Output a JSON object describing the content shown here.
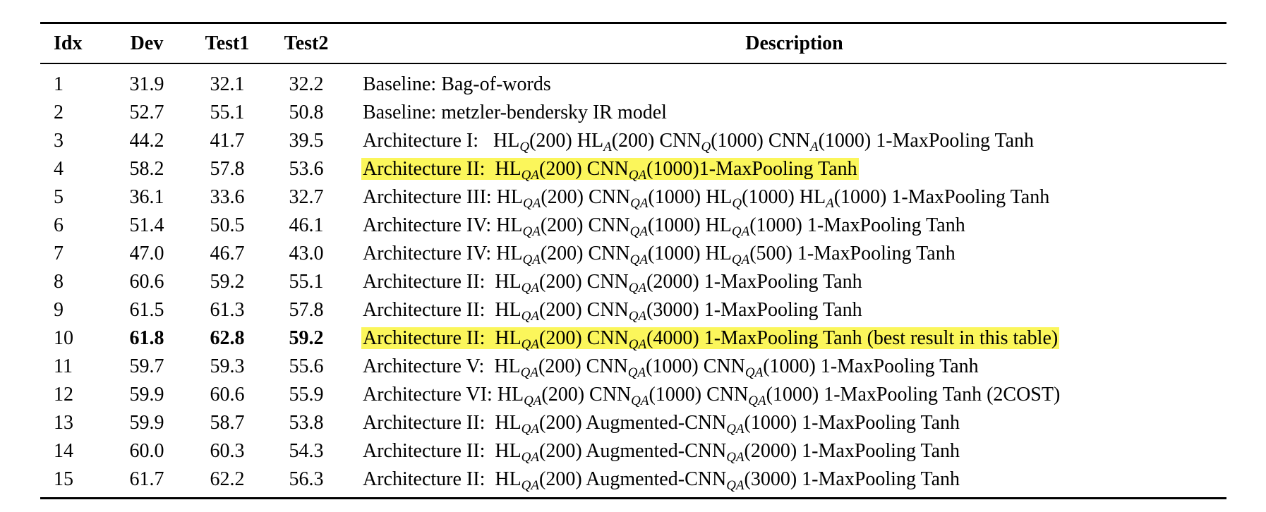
{
  "table": {
    "headers": {
      "idx": "Idx",
      "dev": "Dev",
      "test1": "Test1",
      "test2": "Test2",
      "description": "Description"
    },
    "highlight_color": "#fbf65b",
    "rows": [
      {
        "idx": "1",
        "dev": "31.9",
        "test1": "32.1",
        "test2": "32.2",
        "bold": false,
        "highlight": false,
        "desc": [
          {
            "t": "Baseline: Bag-of-words"
          }
        ]
      },
      {
        "idx": "2",
        "dev": "52.7",
        "test1": "55.1",
        "test2": "50.8",
        "bold": false,
        "highlight": false,
        "desc": [
          {
            "t": "Baseline: metzler-bendersky IR model"
          }
        ]
      },
      {
        "idx": "3",
        "dev": "44.2",
        "test1": "41.7",
        "test2": "39.5",
        "bold": false,
        "highlight": false,
        "desc": [
          {
            "t": "Architecture I:   HL"
          },
          {
            "s": "Q"
          },
          {
            "t": "(200) HL"
          },
          {
            "s": "A"
          },
          {
            "t": "(200) CNN"
          },
          {
            "s": "Q"
          },
          {
            "t": "(1000) CNN"
          },
          {
            "s": "A"
          },
          {
            "t": "(1000) 1-MaxPooling Tanh"
          }
        ]
      },
      {
        "idx": "4",
        "dev": "58.2",
        "test1": "57.8",
        "test2": "53.6",
        "bold": false,
        "highlight": true,
        "desc": [
          {
            "t": "Architecture II:  HL"
          },
          {
            "s": "QA"
          },
          {
            "t": "(200) CNN"
          },
          {
            "s": "QA"
          },
          {
            "t": "(1000)1-MaxPooling Tanh"
          }
        ]
      },
      {
        "idx": "5",
        "dev": "36.1",
        "test1": "33.6",
        "test2": "32.7",
        "bold": false,
        "highlight": false,
        "desc": [
          {
            "t": "Architecture III: HL"
          },
          {
            "s": "QA"
          },
          {
            "t": "(200) CNN"
          },
          {
            "s": "QA"
          },
          {
            "t": "(1000) HL"
          },
          {
            "s": "Q"
          },
          {
            "t": "(1000) HL"
          },
          {
            "s": "A"
          },
          {
            "t": "(1000) 1-MaxPooling Tanh"
          }
        ]
      },
      {
        "idx": "6",
        "dev": "51.4",
        "test1": "50.5",
        "test2": "46.1",
        "bold": false,
        "highlight": false,
        "desc": [
          {
            "t": "Architecture IV: HL"
          },
          {
            "s": "QA"
          },
          {
            "t": "(200) CNN"
          },
          {
            "s": "QA"
          },
          {
            "t": "(1000) HL"
          },
          {
            "s": "QA"
          },
          {
            "t": "(1000) 1-MaxPooling Tanh"
          }
        ]
      },
      {
        "idx": "7",
        "dev": "47.0",
        "test1": "46.7",
        "test2": "43.0",
        "bold": false,
        "highlight": false,
        "desc": [
          {
            "t": "Architecture IV: HL"
          },
          {
            "s": "QA"
          },
          {
            "t": "(200) CNN"
          },
          {
            "s": "QA"
          },
          {
            "t": "(1000) HL"
          },
          {
            "s": "QA"
          },
          {
            "t": "(500) 1-MaxPooling Tanh"
          }
        ]
      },
      {
        "idx": "8",
        "dev": "60.6",
        "test1": "59.2",
        "test2": "55.1",
        "bold": false,
        "highlight": false,
        "desc": [
          {
            "t": "Architecture II:  HL"
          },
          {
            "s": "QA"
          },
          {
            "t": "(200) CNN"
          },
          {
            "s": "QA"
          },
          {
            "t": "(2000) 1-MaxPooling Tanh"
          }
        ]
      },
      {
        "idx": "9",
        "dev": "61.5",
        "test1": "61.3",
        "test2": "57.8",
        "bold": false,
        "highlight": false,
        "desc": [
          {
            "t": "Architecture II:  HL"
          },
          {
            "s": "QA"
          },
          {
            "t": "(200) CNN"
          },
          {
            "s": "QA"
          },
          {
            "t": "(3000) 1-MaxPooling Tanh"
          }
        ]
      },
      {
        "idx": "10",
        "dev": "61.8",
        "test1": "62.8",
        "test2": "59.2",
        "bold": true,
        "highlight": true,
        "desc": [
          {
            "t": "Architecture II:  HL"
          },
          {
            "s": "QA"
          },
          {
            "t": "(200) CNN"
          },
          {
            "s": "QA"
          },
          {
            "t": "(4000) 1-MaxPooling Tanh (best result in this table)"
          }
        ]
      },
      {
        "idx": "11",
        "dev": "59.7",
        "test1": "59.3",
        "test2": "55.6",
        "bold": false,
        "highlight": false,
        "desc": [
          {
            "t": "Architecture V:  HL"
          },
          {
            "s": "QA"
          },
          {
            "t": "(200) CNN"
          },
          {
            "s": "QA"
          },
          {
            "t": "(1000) CNN"
          },
          {
            "s": "QA"
          },
          {
            "t": "(1000) 1-MaxPooling Tanh"
          }
        ]
      },
      {
        "idx": "12",
        "dev": "59.9",
        "test1": "60.6",
        "test2": "55.9",
        "bold": false,
        "highlight": false,
        "desc": [
          {
            "t": "Architecture VI: HL"
          },
          {
            "s": "QA"
          },
          {
            "t": "(200) CNN"
          },
          {
            "s": "QA"
          },
          {
            "t": "(1000) CNN"
          },
          {
            "s": "QA"
          },
          {
            "t": "(1000) 1-MaxPooling Tanh (2COST)"
          }
        ]
      },
      {
        "idx": "13",
        "dev": "59.9",
        "test1": "58.7",
        "test2": "53.8",
        "bold": false,
        "highlight": false,
        "desc": [
          {
            "t": "Architecture II:  HL"
          },
          {
            "s": "QA"
          },
          {
            "t": "(200) Augmented-CNN"
          },
          {
            "s": "QA"
          },
          {
            "t": "(1000) 1-MaxPooling Tanh"
          }
        ]
      },
      {
        "idx": "14",
        "dev": "60.0",
        "test1": "60.3",
        "test2": "54.3",
        "bold": false,
        "highlight": false,
        "desc": [
          {
            "t": "Architecture II:  HL"
          },
          {
            "s": "QA"
          },
          {
            "t": "(200) Augmented-CNN"
          },
          {
            "s": "QA"
          },
          {
            "t": "(2000) 1-MaxPooling Tanh"
          }
        ]
      },
      {
        "idx": "15",
        "dev": "61.7",
        "test1": "62.2",
        "test2": "56.3",
        "bold": false,
        "highlight": false,
        "desc": [
          {
            "t": "Architecture II:  HL"
          },
          {
            "s": "QA"
          },
          {
            "t": "(200) Augmented-CNN"
          },
          {
            "s": "QA"
          },
          {
            "t": "(3000) 1-MaxPooling Tanh"
          }
        ]
      }
    ]
  }
}
